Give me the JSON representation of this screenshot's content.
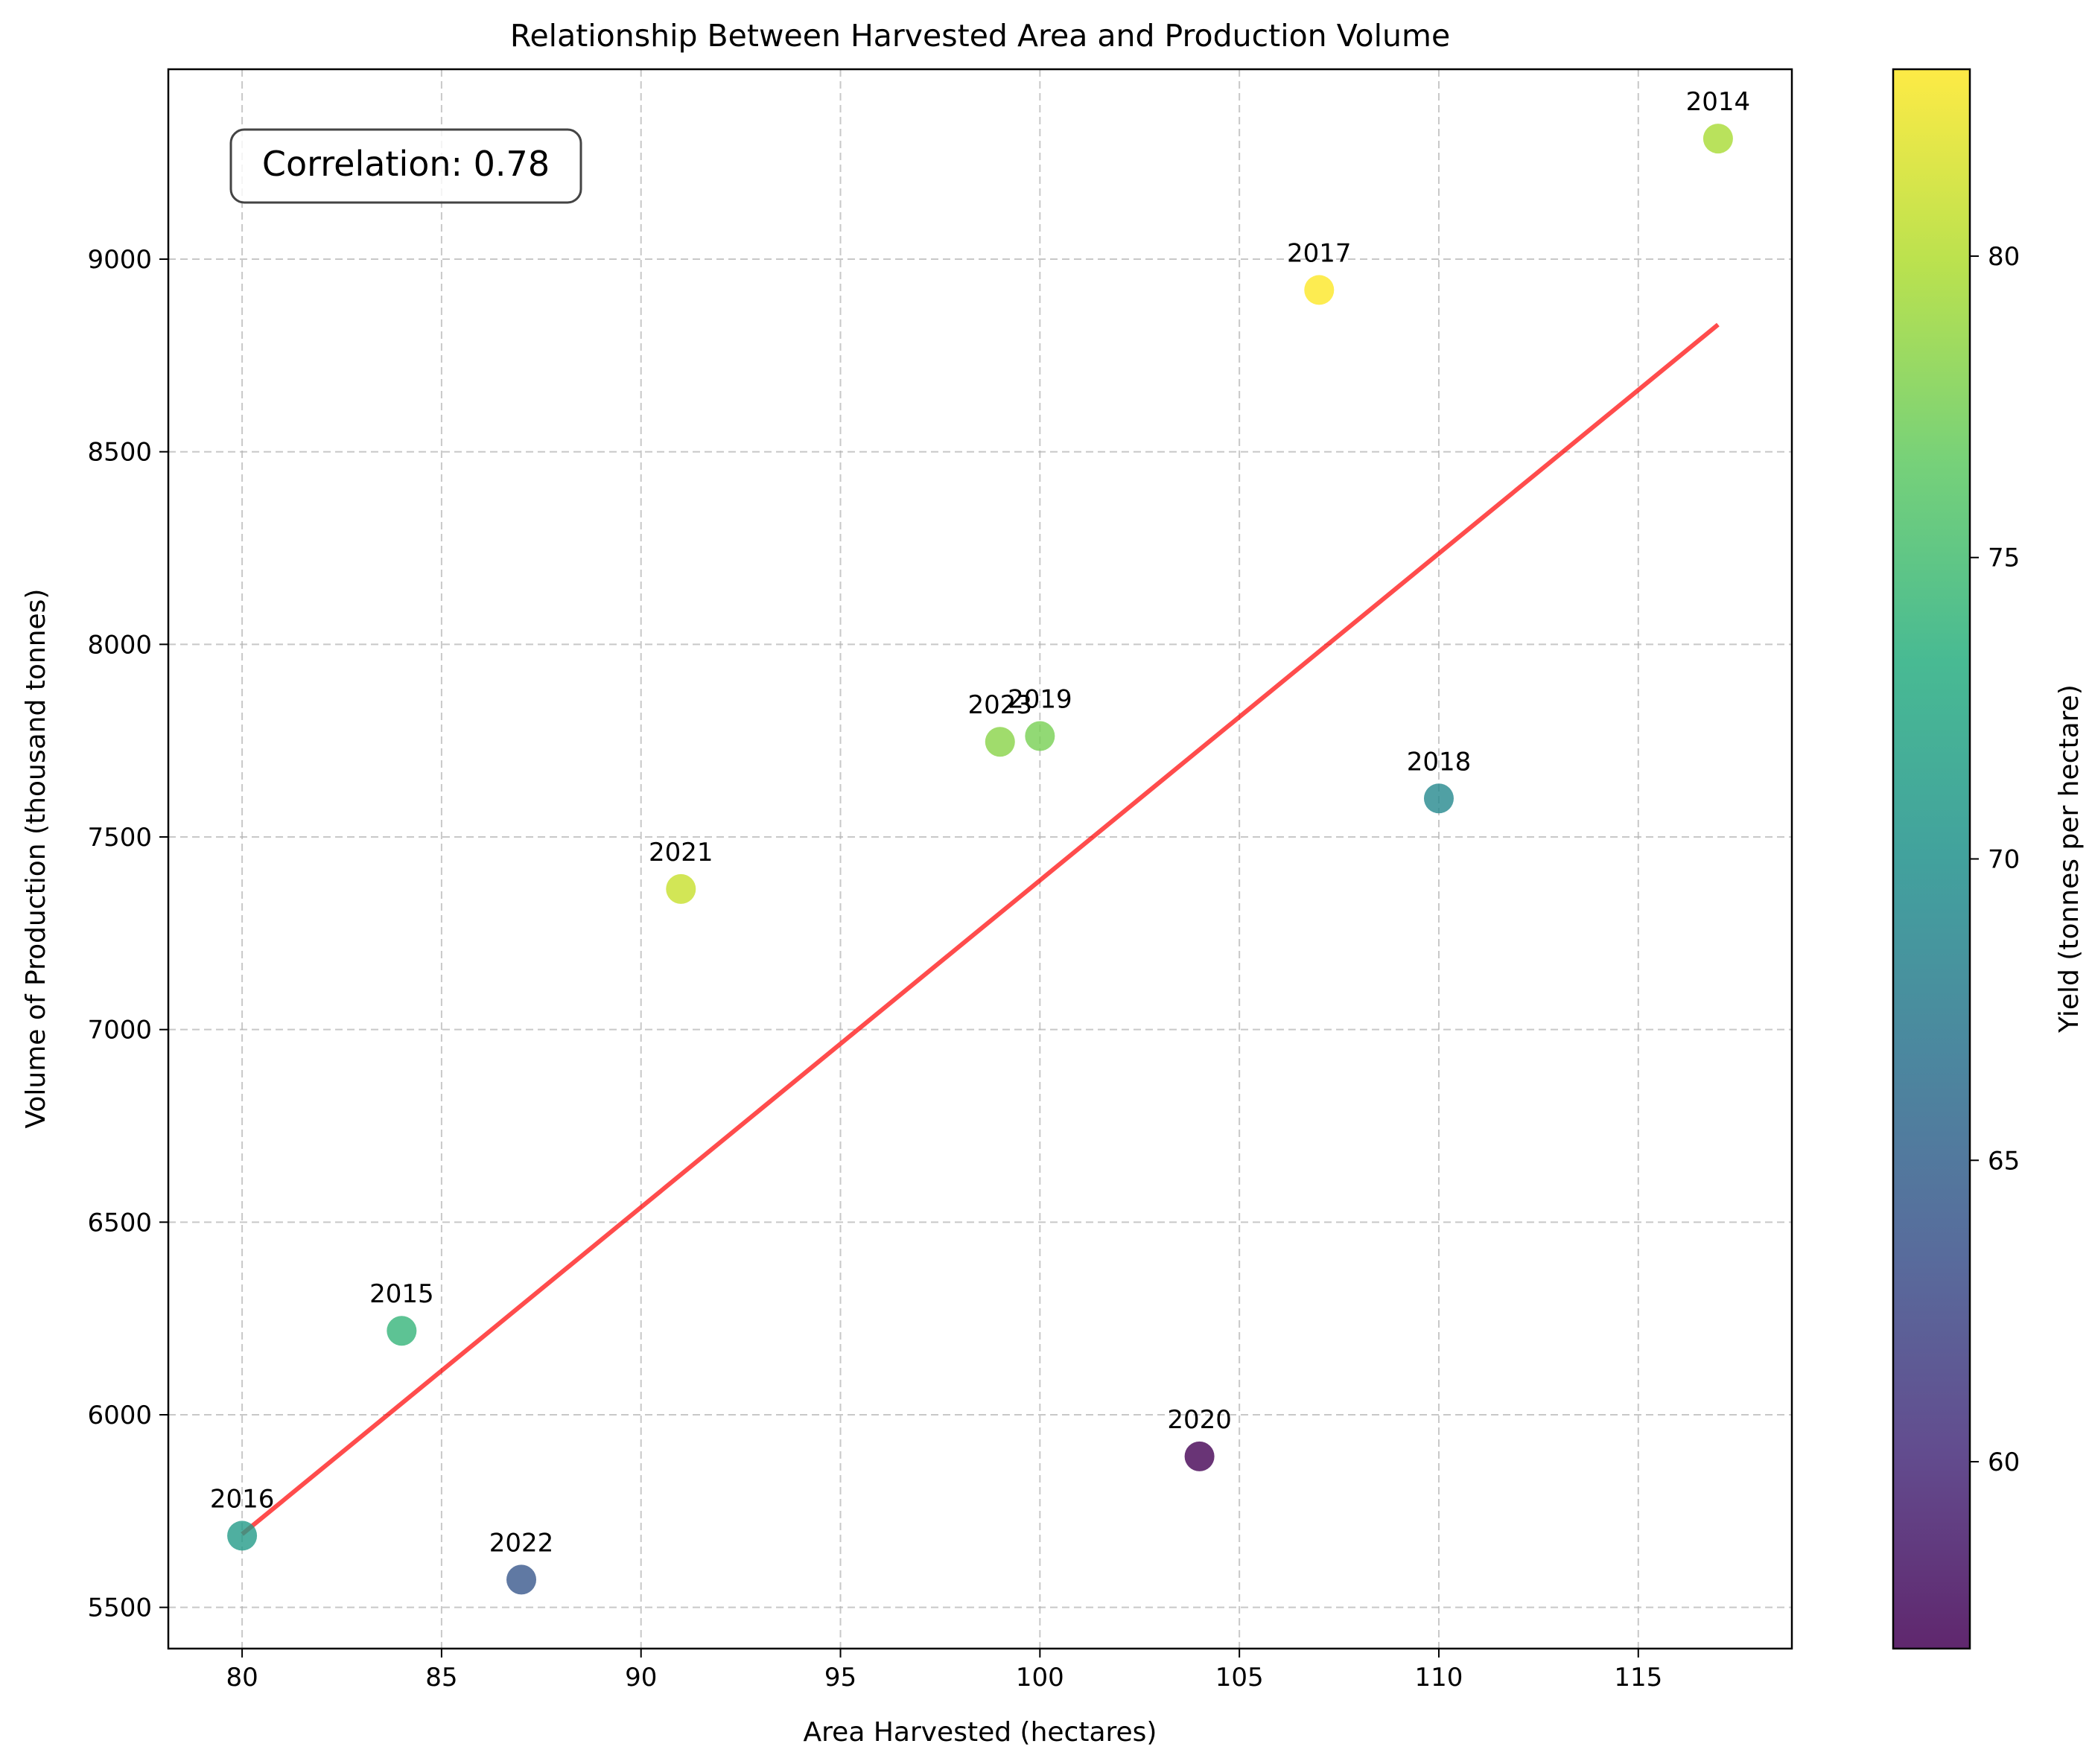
{
  "chart_data": {
    "type": "scatter",
    "title": "Relationship Between Harvested Area and Production Volume",
    "xlabel": "Area Harvested (hectares)",
    "ylabel": "Volume of Production (thousand tonnes)",
    "colorbar_label": "Yield (tonnes per hectare)",
    "xlim": [
      78.15,
      118.85
    ],
    "ylim": [
      5393,
      9493
    ],
    "color_range": [
      56.9,
      83.1
    ],
    "x_ticks": [
      80,
      85,
      90,
      95,
      100,
      105,
      110,
      115
    ],
    "y_ticks": [
      5500,
      6000,
      6500,
      7000,
      7500,
      8000,
      8500,
      9000
    ],
    "colorbar_ticks": [
      60,
      65,
      70,
      75,
      80
    ],
    "grid": true,
    "colormap": "viridis",
    "points": [
      {
        "label": "2014",
        "x": 117,
        "y": 9313,
        "yield": 79.6
      },
      {
        "label": "2015",
        "x": 84,
        "y": 6218,
        "yield": 74.0
      },
      {
        "label": "2016",
        "x": 80,
        "y": 5686,
        "yield": 71.1
      },
      {
        "label": "2017",
        "x": 107,
        "y": 8920,
        "yield": 83.4
      },
      {
        "label": "2018",
        "x": 110,
        "y": 7600,
        "yield": 69.1
      },
      {
        "label": "2019",
        "x": 100,
        "y": 7762,
        "yield": 77.6
      },
      {
        "label": "2020",
        "x": 104,
        "y": 5892,
        "yield": 56.7
      },
      {
        "label": "2021",
        "x": 91,
        "y": 7365,
        "yield": 80.9
      },
      {
        "label": "2022",
        "x": 87,
        "y": 5572,
        "yield": 64.0
      },
      {
        "label": "2023",
        "x": 99,
        "y": 7747,
        "yield": 78.3
      }
    ],
    "trend_line": {
      "color": "#ff0000",
      "x": [
        80,
        117
      ],
      "y": [
        5690,
        8830
      ]
    },
    "annotation": "Correlation: 0.78"
  }
}
